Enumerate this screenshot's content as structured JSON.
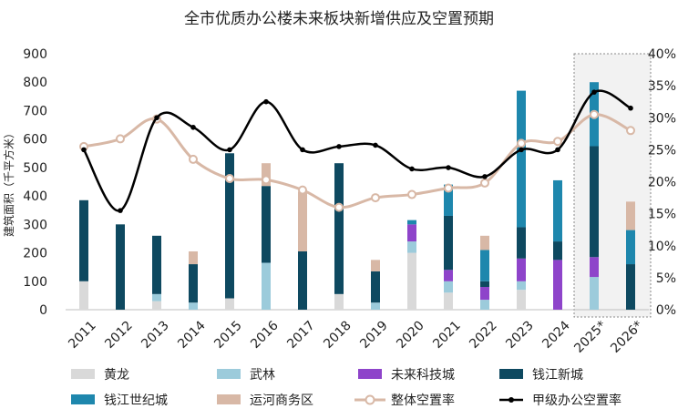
{
  "chart_data": {
    "type": "bar",
    "title": "全市优质办公楼未来板块新增供应及空置预期",
    "ylabel": "建筑面积（千平方米）",
    "ylim": [
      0,
      900
    ],
    "y_ticks": [
      "0",
      "100",
      "200",
      "300",
      "400",
      "500",
      "600",
      "700",
      "800",
      "900"
    ],
    "y2lim": [
      0,
      40
    ],
    "y2_ticks": [
      "0%",
      "5%",
      "10%",
      "15%",
      "20%",
      "25%",
      "30%",
      "35%",
      "40%"
    ],
    "categories": [
      "2011",
      "2012",
      "2013",
      "2014",
      "2015",
      "2016",
      "2017",
      "2018",
      "2019",
      "2020",
      "2021",
      "2022",
      "2023",
      "2024",
      "2025*",
      "2026*"
    ],
    "forecast_highlight": [
      "2025*",
      "2026*"
    ],
    "legend_position": "bottom",
    "series": [
      {
        "name": "黄龙",
        "kind": "stacked-bar",
        "color": "#d9d9d9",
        "values": [
          100,
          0,
          30,
          0,
          40,
          0,
          0,
          55,
          0,
          200,
          60,
          0,
          70,
          0,
          0,
          0
        ]
      },
      {
        "name": "武林",
        "kind": "stacked-bar",
        "color": "#9ccbdb",
        "values": [
          0,
          0,
          25,
          25,
          0,
          165,
          0,
          0,
          25,
          40,
          40,
          35,
          30,
          0,
          115,
          0
        ]
      },
      {
        "name": "未来科技城",
        "kind": "stacked-bar",
        "color": "#8e44ca",
        "values": [
          0,
          0,
          0,
          0,
          0,
          0,
          0,
          0,
          0,
          60,
          40,
          45,
          80,
          175,
          70,
          0
        ]
      },
      {
        "name": "钱江新城",
        "kind": "stacked-bar",
        "color": "#0e4960",
        "values": [
          285,
          300,
          205,
          135,
          510,
          270,
          205,
          460,
          110,
          0,
          190,
          20,
          110,
          65,
          390,
          160
        ]
      },
      {
        "name": "钱江世纪城",
        "kind": "stacked-bar",
        "color": "#1e87ad",
        "values": [
          0,
          0,
          0,
          0,
          0,
          0,
          0,
          0,
          0,
          15,
          110,
          110,
          480,
          215,
          225,
          120
        ]
      },
      {
        "name": "运河商务区",
        "kind": "stacked-bar",
        "color": "#d8b8a6",
        "values": [
          0,
          0,
          0,
          45,
          0,
          80,
          210,
          0,
          40,
          0,
          0,
          50,
          0,
          0,
          0,
          100
        ]
      },
      {
        "name": "整体空置率",
        "kind": "line",
        "axis": "right",
        "color": "#d8b8a6",
        "values": [
          25.5,
          26.7,
          29.8,
          23.5,
          20.5,
          20.3,
          18.7,
          16.0,
          17.5,
          18.0,
          19.0,
          19.8,
          26.0,
          26.3,
          30.5,
          28.0
        ]
      },
      {
        "name": "甲级办公空置率",
        "kind": "line",
        "axis": "right",
        "color": "#000000",
        "values": [
          25.0,
          15.5,
          30.0,
          28.5,
          25.0,
          32.5,
          25.0,
          25.5,
          25.7,
          22.0,
          22.2,
          20.8,
          25.0,
          25.0,
          34.0,
          31.5
        ]
      }
    ]
  }
}
